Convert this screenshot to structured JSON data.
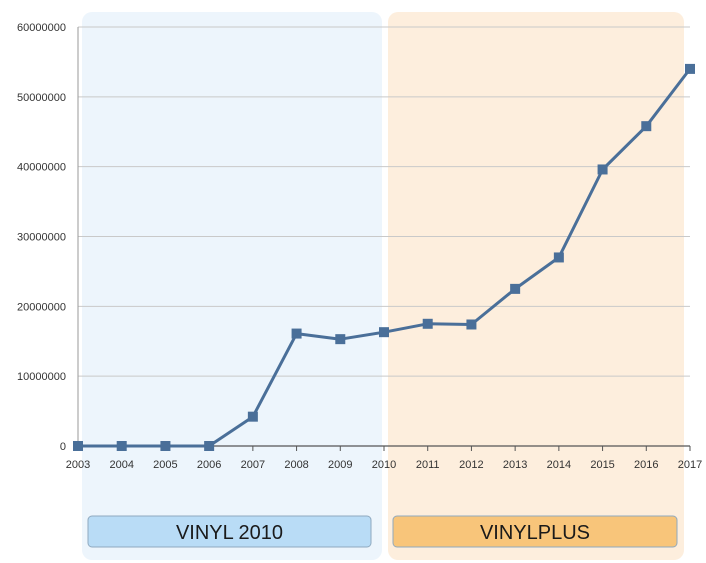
{
  "chart_data": {
    "type": "line",
    "title": "",
    "xlabel": "",
    "ylabel": "",
    "x": [
      2003,
      2004,
      2005,
      2006,
      2007,
      2008,
      2009,
      2010,
      2011,
      2012,
      2013,
      2014,
      2015,
      2016,
      2017
    ],
    "series": [
      {
        "values": [
          0,
          0,
          0,
          0,
          4200000,
          16100000,
          15300000,
          16300000,
          17500000,
          17400000,
          22500000,
          27000000,
          39600000,
          45800000,
          54000000
        ]
      }
    ],
    "ylim": [
      0,
      60000000
    ],
    "yticks": [
      "0",
      "10000000",
      "20000000",
      "30000000",
      "40000000",
      "50000000",
      "60000000"
    ],
    "grid": true,
    "line_color": "#4a6f99",
    "phases": [
      {
        "label": "VINYL 2010",
        "from": 2003,
        "to": 2010,
        "band_color": "#edf5fc",
        "label_color": "#b9dcf6"
      },
      {
        "label": "VINYLPLUS",
        "from": 2010,
        "to": 2017,
        "band_color": "#fdeedd",
        "label_color": "#f8c57a"
      }
    ]
  }
}
